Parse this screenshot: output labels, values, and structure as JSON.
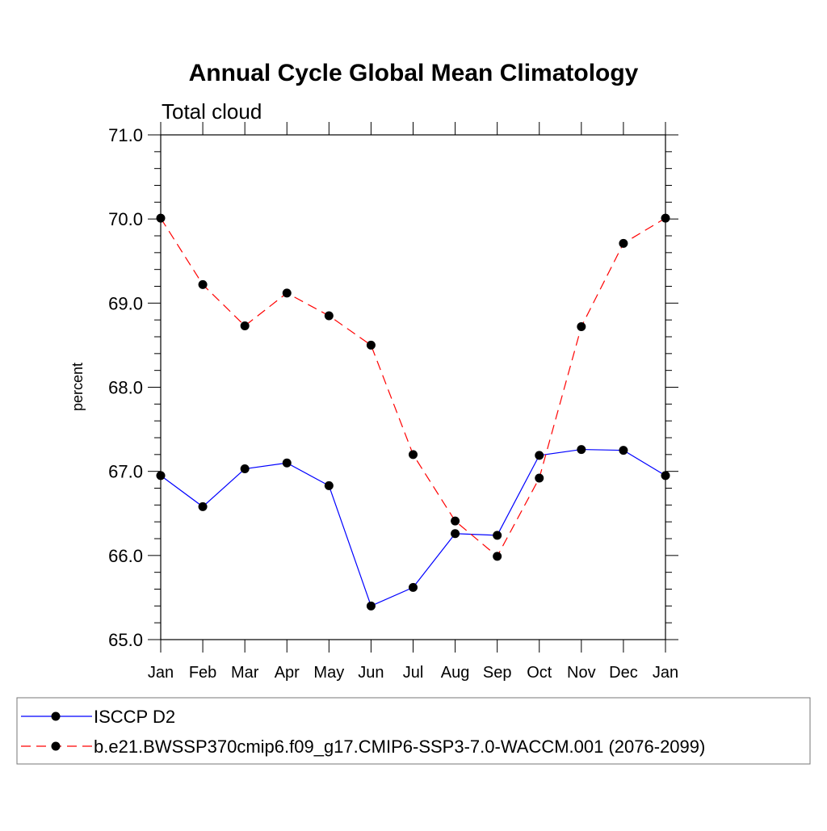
{
  "chart_data": {
    "type": "line",
    "title": "Annual Cycle Global Mean Climatology",
    "subtitle": "Total cloud",
    "xlabel": "",
    "ylabel": "percent",
    "ylim": [
      65.0,
      71.0
    ],
    "yticks": [
      "65.0",
      "66.0",
      "67.0",
      "68.0",
      "69.0",
      "70.0",
      "71.0"
    ],
    "categories": [
      "Jan",
      "Feb",
      "Mar",
      "Apr",
      "May",
      "Jun",
      "Jul",
      "Aug",
      "Sep",
      "Oct",
      "Nov",
      "Dec",
      "Jan"
    ],
    "grid": false,
    "legend_position": "bottom",
    "series": [
      {
        "name": "ISCCP D2",
        "color": "#0000ff",
        "dash": "solid",
        "marker": "filled-circle",
        "values": [
          66.95,
          66.58,
          67.03,
          67.1,
          66.83,
          65.4,
          65.62,
          66.26,
          66.24,
          67.19,
          67.26,
          67.25,
          66.95
        ]
      },
      {
        "name": "b.e21.BWSSP370cmip6.f09_g17.CMIP6-SSP3-7.0-WACCM.001 (2076-2099)",
        "color": "#ff0000",
        "dash": "dashed",
        "marker": "filled-circle",
        "values": [
          70.01,
          69.22,
          68.73,
          69.12,
          68.85,
          68.5,
          67.2,
          66.41,
          65.99,
          66.92,
          68.72,
          69.71,
          70.01
        ]
      }
    ]
  }
}
